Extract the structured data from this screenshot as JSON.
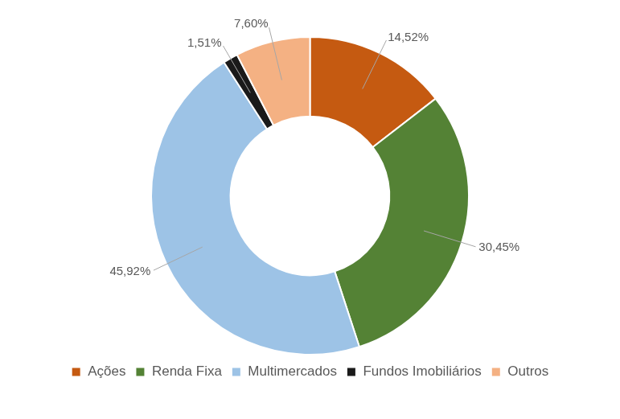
{
  "chart_data": {
    "type": "doughnut",
    "categories": [
      "Ações",
      "Renda Fixa",
      "Multimercados",
      "Fundos Imobiliários",
      "Outros"
    ],
    "values": [
      14.52,
      30.45,
      45.92,
      1.51,
      7.6
    ],
    "value_labels": [
      "14,52%",
      "30,45%",
      "45,92%",
      "1,51%",
      "7,60%"
    ],
    "colors": [
      "#c55a11",
      "#548235",
      "#9dc3e6",
      "#1a1a1a",
      "#f4b183"
    ],
    "data_labels": true,
    "legend": "bottom"
  }
}
